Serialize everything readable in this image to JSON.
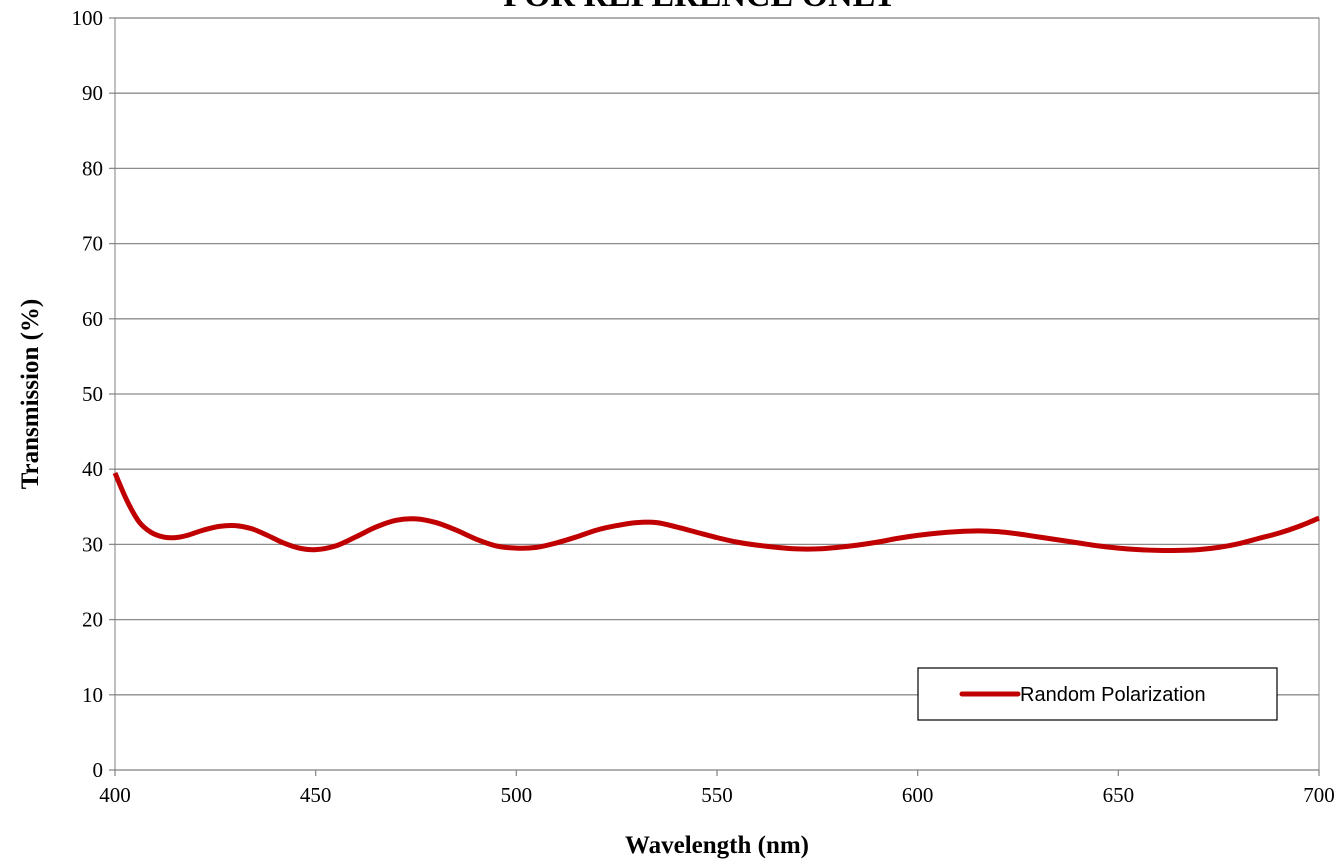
{
  "watermark": "FOR REFERENCE ONLY",
  "chart_data": {
    "type": "line",
    "xlabel": "Wavelength (nm)",
    "ylabel": "Transmission (%)",
    "xlim": [
      400,
      700
    ],
    "ylim": [
      0,
      100
    ],
    "xticks": [
      400,
      450,
      500,
      550,
      600,
      650,
      700
    ],
    "yticks": [
      0,
      10,
      20,
      30,
      40,
      50,
      60,
      70,
      80,
      90,
      100
    ],
    "grid": "horizontal",
    "legend_position": "bottom-right",
    "series": [
      {
        "name": "Random Polarization",
        "color": "#C00000",
        "x": [
          400,
          403,
          406,
          409,
          412,
          415,
          418,
          422,
          426,
          430,
          434,
          438,
          442,
          446,
          450,
          455,
          460,
          465,
          470,
          475,
          480,
          485,
          490,
          495,
          500,
          505,
          510,
          515,
          520,
          525,
          530,
          535,
          540,
          545,
          550,
          555,
          560,
          565,
          570,
          575,
          580,
          585,
          590,
          595,
          600,
          605,
          610,
          615,
          620,
          625,
          630,
          635,
          640,
          645,
          650,
          655,
          660,
          665,
          670,
          675,
          680,
          685,
          690,
          695,
          700
        ],
        "y": [
          39.5,
          35.8,
          33.0,
          31.6,
          31.0,
          30.9,
          31.2,
          31.9,
          32.4,
          32.5,
          32.1,
          31.2,
          30.2,
          29.5,
          29.3,
          29.8,
          31.0,
          32.3,
          33.2,
          33.4,
          32.9,
          31.9,
          30.7,
          29.8,
          29.5,
          29.6,
          30.2,
          31.0,
          31.9,
          32.5,
          32.9,
          32.9,
          32.3,
          31.6,
          30.9,
          30.3,
          29.9,
          29.6,
          29.4,
          29.4,
          29.6,
          29.9,
          30.3,
          30.8,
          31.2,
          31.5,
          31.7,
          31.8,
          31.7,
          31.4,
          31.0,
          30.6,
          30.2,
          29.8,
          29.5,
          29.3,
          29.2,
          29.2,
          29.3,
          29.6,
          30.1,
          30.8,
          31.5,
          32.4,
          33.5
        ]
      }
    ]
  }
}
